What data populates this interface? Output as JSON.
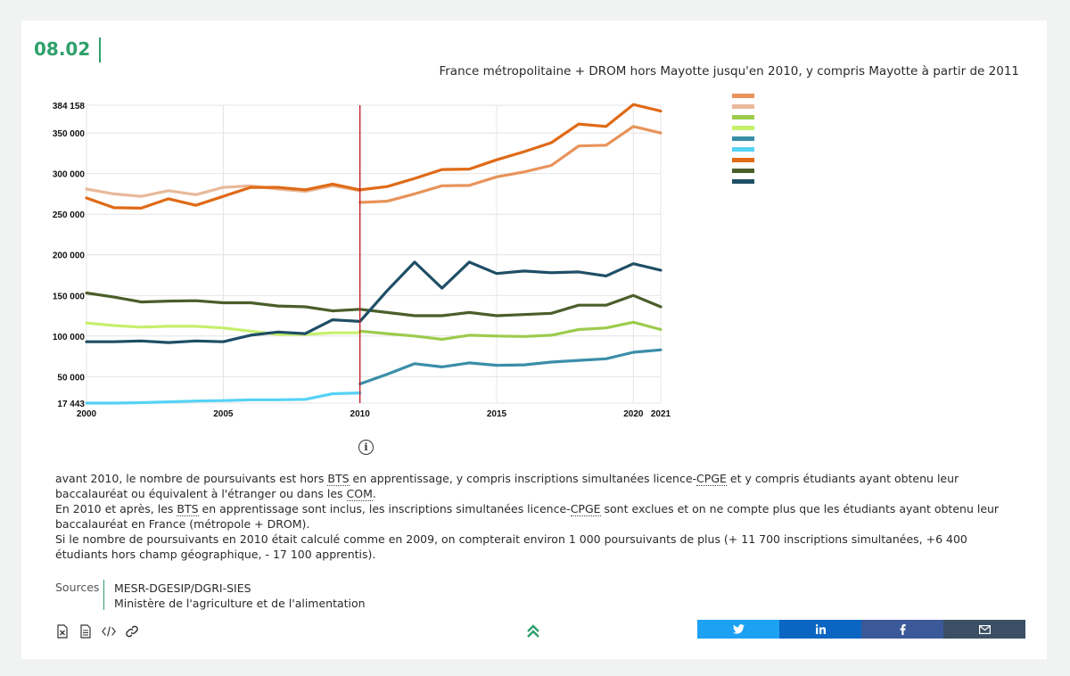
{
  "figure_number": "08.02",
  "subtitle": "France métropolitaine + DROM hors Mayotte jusqu'en 2010, y compris Mayotte à partir de 2011",
  "colors": {
    "accent": "#2ea06b",
    "divider": "#c0202a",
    "twitter": "#1da1f2",
    "linkedin": "#0a66c2",
    "facebook": "#3b5998",
    "email": "#3b4e63"
  },
  "chart_data": {
    "type": "line",
    "x": [
      2000,
      2001,
      2002,
      2003,
      2004,
      2005,
      2006,
      2007,
      2008,
      2009,
      2010,
      2011,
      2012,
      2013,
      2014,
      2015,
      2016,
      2017,
      2018,
      2019,
      2020,
      2021
    ],
    "xticks": [
      "2000",
      "2005",
      "2010",
      "2015",
      "2020",
      "2021"
    ],
    "yticks": [
      "17 443",
      "50 000",
      "100 000",
      "150 000",
      "200 000",
      "250 000",
      "300 000",
      "350 000",
      "384 158"
    ],
    "ylim": [
      17443,
      384158
    ],
    "grid": true,
    "break_at": 2010,
    "series": [
      {
        "color": "#e8935a",
        "values": [
          null,
          null,
          null,
          null,
          null,
          null,
          null,
          null,
          null,
          null,
          264500,
          266000,
          275000,
          285000,
          285500,
          296000,
          302000,
          310000,
          334000,
          335000,
          358000,
          350000
        ]
      },
      {
        "color": "#e8b99a",
        "values": [
          281000,
          275000,
          272000,
          279000,
          274000,
          283000,
          285000,
          281000,
          278000,
          285000,
          279000,
          null,
          null,
          null,
          null,
          null,
          null,
          null,
          null,
          null,
          null,
          null
        ]
      },
      {
        "color": "#9ccb4c",
        "values": [
          null,
          null,
          null,
          null,
          null,
          null,
          null,
          null,
          null,
          null,
          106000,
          103000,
          100000,
          96000,
          101000,
          100000,
          99500,
          101000,
          108000,
          110000,
          117000,
          108000
        ]
      },
      {
        "color": "#c6ef6c",
        "values": [
          116000,
          113000,
          111000,
          112000,
          112000,
          110000,
          106000,
          102000,
          102000,
          104000,
          104000,
          null,
          null,
          null,
          null,
          null,
          null,
          null,
          null,
          null,
          null,
          null
        ]
      },
      {
        "color": "#3a8ea8",
        "values": [
          null,
          null,
          null,
          null,
          null,
          null,
          null,
          null,
          null,
          null,
          41000,
          53000,
          66000,
          62000,
          67000,
          64000,
          64500,
          68000,
          70000,
          72000,
          80000,
          83000
        ]
      },
      {
        "color": "#56d2f5",
        "values": [
          17443,
          17443,
          18000,
          19000,
          20000,
          20500,
          21500,
          21500,
          22000,
          29000,
          30000,
          null,
          null,
          null,
          null,
          null,
          null,
          null,
          null,
          null,
          null,
          null
        ]
      },
      {
        "color": "#e06a16",
        "values": [
          270000,
          258000,
          257500,
          269000,
          261000,
          272000,
          283000,
          283000,
          280000,
          287000,
          280000,
          284000,
          294000,
          305000,
          305500,
          317000,
          327000,
          338000,
          361000,
          358000,
          385000,
          377000
        ]
      },
      {
        "color": "#4a5e2a",
        "values": [
          153000,
          148000,
          142000,
          143000,
          143500,
          141000,
          141000,
          137000,
          136000,
          131000,
          133000,
          129000,
          125000,
          125000,
          129000,
          125000,
          126500,
          128000,
          138000,
          138000,
          150000,
          136000
        ]
      },
      {
        "color": "#1f4e66",
        "values": [
          93000,
          93000,
          94000,
          92000,
          94000,
          93000,
          101000,
          105000,
          103000,
          120000,
          118000,
          156000,
          191000,
          159000,
          191000,
          177000,
          180000,
          178000,
          179000,
          174000,
          189000,
          181000
        ]
      }
    ]
  },
  "info_icon_label": "i",
  "notes": {
    "p1_a": "avant 2010, le nombre de poursuivants est hors ",
    "p1_bts": "BTS",
    "p1_b": " en apprentissage, y compris inscriptions simultanées licence-",
    "p1_cpge": "CPGE",
    "p1_c": " et y compris étudiants ayant obtenu leur baccalauréat ou équivalent à l'étranger ou dans les ",
    "p1_com": "COM",
    "p1_d": ".",
    "p2_a": "En 2010 et après, les ",
    "p2_bts": "BTS",
    "p2_b": " en apprentissage sont inclus, les inscriptions simultanées licence-",
    "p2_cpge": "CPGE",
    "p2_c": " sont exclues et on ne compte plus que les étudiants ayant obtenu leur baccalauréat en France (métropole + DROM).",
    "p3": "Si le nombre de poursuivants en 2010 était calculé comme en 2009, on compterait environ 1 000 poursuivants de plus (+ 11 700 inscriptions simultanées, +6 400 étudiants hors champ géographique, - 17 100 apprentis)."
  },
  "sources": {
    "label": "Sources",
    "items": [
      "MESR-DGESIP/DGRI-SIES",
      "Ministère de l'agriculture et de l'alimentation"
    ]
  },
  "tools": [
    "excel-icon",
    "document-icon",
    "code-icon",
    "link-icon"
  ],
  "share": [
    "twitter-icon",
    "linkedin-icon",
    "facebook-icon",
    "email-icon"
  ]
}
